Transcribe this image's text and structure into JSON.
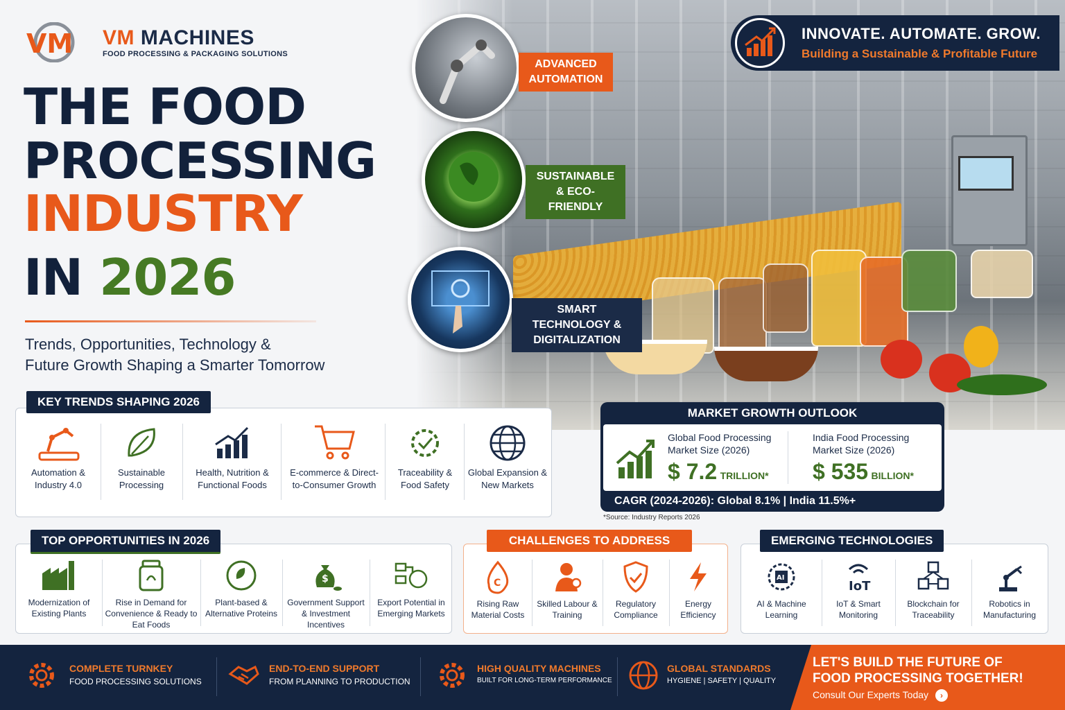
{
  "brand": {
    "name_part1": "VM",
    "name_part2": " MACHINES",
    "tagline": "FOOD PROCESSING & PACKAGING SOLUTIONS",
    "logo_letters": "VM"
  },
  "headline": {
    "line1": "THE FOOD",
    "line2": "PROCESSING",
    "line3": "INDUSTRY",
    "line4_prefix": "IN ",
    "line4_year": "2026"
  },
  "subtitle": {
    "line1": "Trends, Opportunities, Technology &",
    "line2": "Future Growth Shaping a Smarter Tomorrow"
  },
  "feature_tags": [
    "ADVANCED AUTOMATION",
    "SUSTAINABLE & ECO-FRIENDLY",
    "SMART TECHNOLOGY & DIGITALIZATION"
  ],
  "banner": {
    "title": "INNOVATE.  AUTOMATE.  GROW.",
    "subtitle": "Building a Sustainable & Profitable Future"
  },
  "key_trends": {
    "title": "KEY TRENDS SHAPING 2026",
    "items": [
      {
        "label": "Automation & Industry 4.0",
        "icon": "robot-arm-icon"
      },
      {
        "label": "Sustainable Processing",
        "icon": "leaf-icon"
      },
      {
        "label": "Health, Nutrition & Functional Foods",
        "icon": "growth-chart-icon"
      },
      {
        "label": "E-commerce & Direct-to-Consumer Growth",
        "icon": "cart-icon"
      },
      {
        "label": "Traceability & Food Safety",
        "icon": "gear-check-icon"
      },
      {
        "label": "Global Expansion & New Markets",
        "icon": "globe-icon"
      }
    ]
  },
  "market": {
    "title": "MARKET GROWTH OUTLOOK",
    "global_label": "Global Food Processing Market Size (2026)",
    "global_value": "$ 7.2",
    "global_unit": "TRILLION*",
    "india_label": "India Food Processing Market Size (2026)",
    "india_value": "$ 535",
    "india_unit": "BILLION*",
    "cagr": "CAGR (2024-2026): Global 8.1%  |  India 11.5%+",
    "source": "*Source: Industry Reports 2026"
  },
  "opportunities": {
    "title": "TOP OPPORTUNITIES IN 2026",
    "items": [
      {
        "label": "Modernization of Existing Plants",
        "icon": "factory-icon"
      },
      {
        "label": "Rise in Demand for Convenience & Ready to Eat Foods",
        "icon": "jar-icon"
      },
      {
        "label": "Plant-based & Alternative Proteins",
        "icon": "plant-globe-icon"
      },
      {
        "label": "Government Support & Investment Incentives",
        "icon": "money-bag-icon"
      },
      {
        "label": "Export Potential in Emerging Markets",
        "icon": "export-globe-icon"
      }
    ]
  },
  "challenges": {
    "title": "CHALLENGES TO ADDRESS",
    "items": [
      {
        "label": "Rising Raw Material Costs",
        "icon": "cost-drop-icon"
      },
      {
        "label": "Skilled Labour & Training",
        "icon": "worker-icon"
      },
      {
        "label": "Regulatory Compliance",
        "icon": "shield-check-icon"
      },
      {
        "label": "Energy Efficiency",
        "icon": "lightning-icon"
      }
    ]
  },
  "emerging": {
    "title": "EMERGING TECHNOLOGIES",
    "items": [
      {
        "label": "AI & Machine Learning",
        "icon": "ai-chip-icon"
      },
      {
        "label": "IoT & Smart Monitoring",
        "icon": "iot-icon"
      },
      {
        "label": "Blockchain for Traceability",
        "icon": "blockchain-icon"
      },
      {
        "label": "Robotics in Manufacturing",
        "icon": "robot-icon"
      }
    ]
  },
  "footer": {
    "items": [
      {
        "title": "COMPLETE TURNKEY",
        "sub": "FOOD PROCESSING SOLUTIONS",
        "icon": "gear-icon"
      },
      {
        "title": "END-TO-END SUPPORT",
        "sub": "FROM PLANNING TO PRODUCTION",
        "icon": "handshake-icon"
      },
      {
        "title": "HIGH QUALITY MACHINES",
        "sub": "BUILT FOR LONG-TERM PERFORMANCE",
        "icon": "gear-icon"
      },
      {
        "title": "GLOBAL STANDARDS",
        "sub": "HYGIENE | SAFETY | QUALITY",
        "icon": "globe-icon"
      }
    ],
    "cta_line1": "LET'S  BUILD THE FUTURE OF",
    "cta_line2": "FOOD PROCESSING TOGETHER!",
    "cta_link": "Consult Our Experts Today"
  },
  "colors": {
    "navy": "#14243f",
    "orange": "#e8591a",
    "green": "#3f7024"
  }
}
